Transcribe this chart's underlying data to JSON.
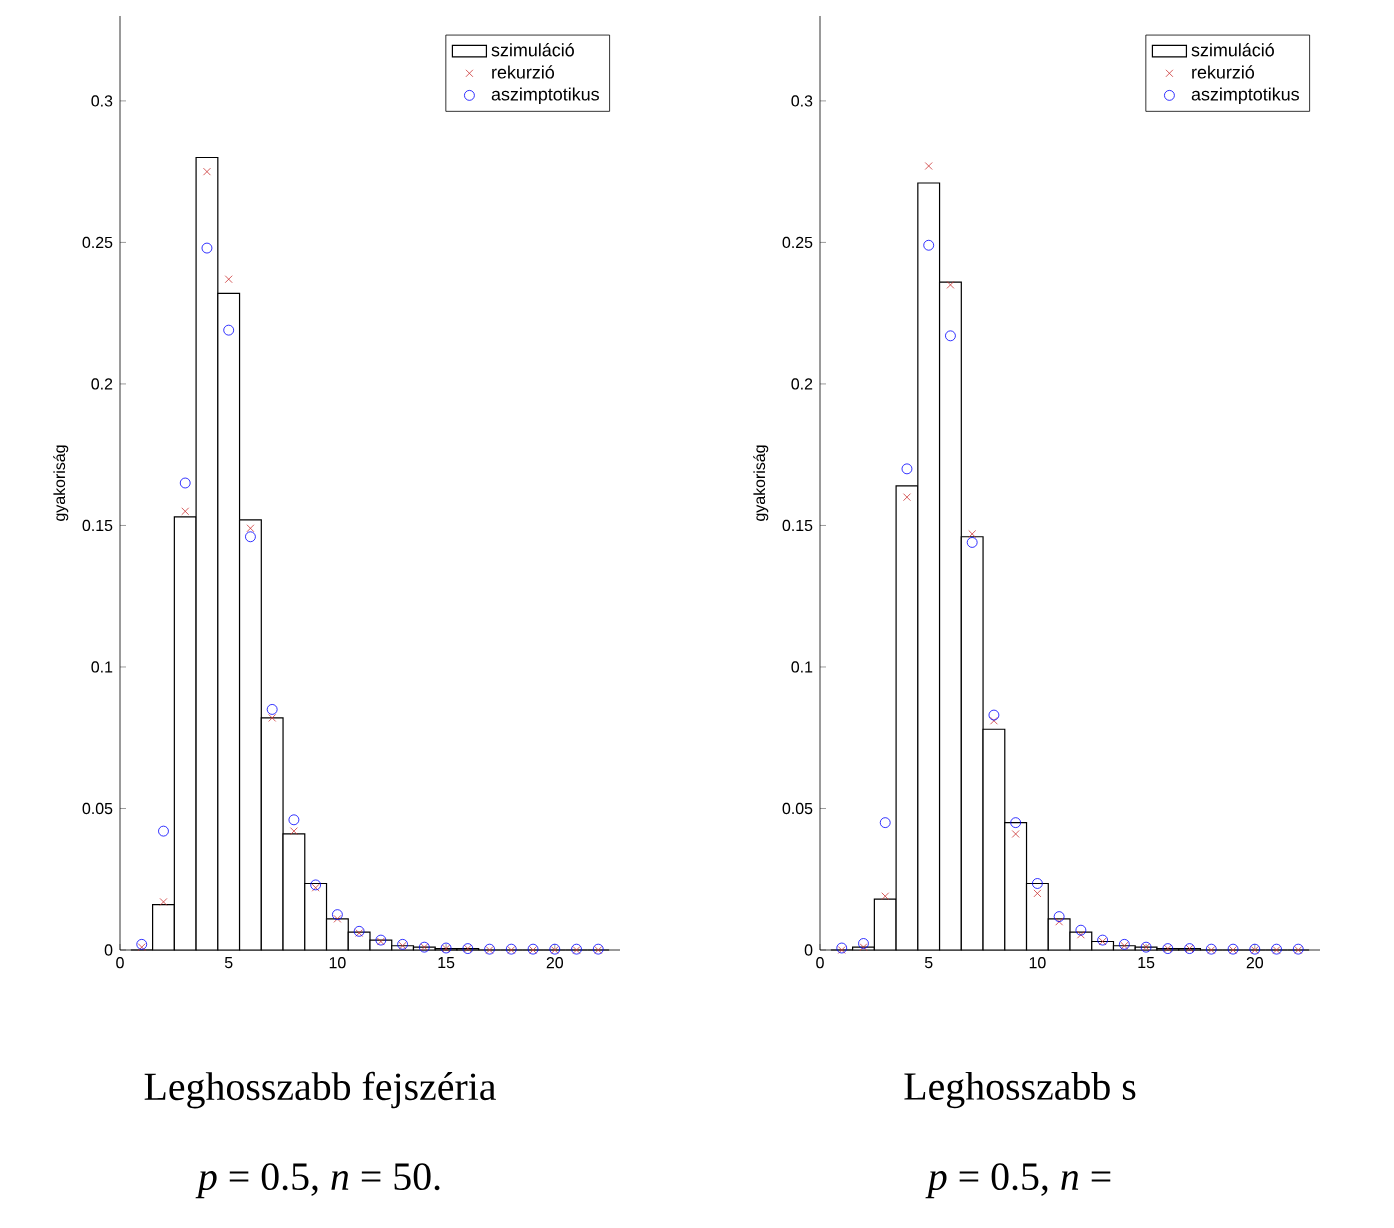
{
  "chart_data": [
    {
      "type": "bar",
      "x": [
        1,
        2,
        3,
        4,
        5,
        6,
        7,
        8,
        9,
        10,
        11,
        12,
        13,
        14,
        15,
        16,
        17,
        18,
        19,
        20,
        21,
        22
      ],
      "ylabel": "gyakoriság",
      "xlim": [
        0,
        23
      ],
      "ylim": [
        0,
        0.33
      ],
      "xticks": [
        0,
        5,
        10,
        15,
        20
      ],
      "yticks": [
        0,
        0.05,
        0.1,
        0.15,
        0.2,
        0.25,
        0.3
      ],
      "legend": "top right",
      "series": [
        {
          "name": "szimuláció",
          "color": "#000000",
          "values": [
            0,
            0.016,
            0.153,
            0.28,
            0.232,
            0.152,
            0.082,
            0.041,
            0.0235,
            0.011,
            0.0063,
            0.0035,
            0.0015,
            0.001,
            0.0005,
            0.0005,
            0,
            0,
            0,
            0,
            0,
            0
          ]
        },
        {
          "name": "rekurzió",
          "type": "scatter",
          "color": "#cc3333",
          "marker": "cross",
          "values": [
            0.001,
            0.017,
            0.155,
            0.275,
            0.237,
            0.149,
            0.082,
            0.042,
            0.022,
            0.011,
            0.006,
            0.003,
            0.0015,
            0.001,
            0.0005,
            0.0005,
            0,
            0,
            0,
            0,
            0,
            0
          ]
        },
        {
          "name": "aszimptotikus",
          "type": "scatter",
          "color": "#0000ff",
          "marker": "circle",
          "values": [
            0.002,
            0.042,
            0.165,
            0.248,
            0.219,
            0.146,
            0.085,
            0.046,
            0.023,
            0.0125,
            0.0066,
            0.0035,
            0.002,
            0.001,
            0.0007,
            0.0005,
            0.0003,
            0.0003,
            0.0003,
            0.0003,
            0.0003,
            0.0003
          ]
        }
      ],
      "annotations": [
        "Leghosszabb fejszéria",
        "*p* = 0.5, *n* = 50."
      ]
    },
    {
      "type": "bar",
      "x": [
        1,
        2,
        3,
        4,
        5,
        6,
        7,
        8,
        9,
        10,
        11,
        12,
        13,
        14,
        15,
        16,
        17,
        18,
        19,
        20,
        21,
        22
      ],
      "ylabel": "gyakoriság",
      "xlim": [
        0,
        23
      ],
      "ylim": [
        0,
        0.33
      ],
      "xticks": [
        0,
        5,
        10,
        15,
        20
      ],
      "yticks": [
        0,
        0.05,
        0.1,
        0.15,
        0.2,
        0.25,
        0.3
      ],
      "legend": "top right",
      "series": [
        {
          "name": "szimuláció",
          "color": "#000000",
          "values": [
            0,
            0.001,
            0.018,
            0.164,
            0.271,
            0.236,
            0.146,
            0.078,
            0.045,
            0.0235,
            0.011,
            0.0063,
            0.003,
            0.0015,
            0.001,
            0.0005,
            0.0005,
            0,
            0,
            0,
            0,
            0
          ]
        },
        {
          "name": "rekurzió",
          "type": "scatter",
          "color": "#cc3333",
          "marker": "cross",
          "values": [
            0,
            0.001,
            0.019,
            0.16,
            0.277,
            0.235,
            0.147,
            0.081,
            0.041,
            0.02,
            0.01,
            0.0054,
            0.003,
            0.0015,
            0.001,
            0.0005,
            0.0005,
            0,
            0,
            0,
            0,
            0
          ]
        },
        {
          "name": "aszimptotikus",
          "type": "scatter",
          "color": "#0000ff",
          "marker": "circle",
          "values": [
            0.0007,
            0.0023,
            0.045,
            0.17,
            0.249,
            0.217,
            0.144,
            0.083,
            0.045,
            0.0235,
            0.0118,
            0.007,
            0.0035,
            0.002,
            0.001,
            0.0005,
            0.0005,
            0.0003,
            0.0003,
            0.0003,
            0.0003,
            0.0003
          ]
        }
      ],
      "annotations": [
        "Leghosszabb s",
        "*p* = 0.5, *n* ="
      ]
    }
  ]
}
